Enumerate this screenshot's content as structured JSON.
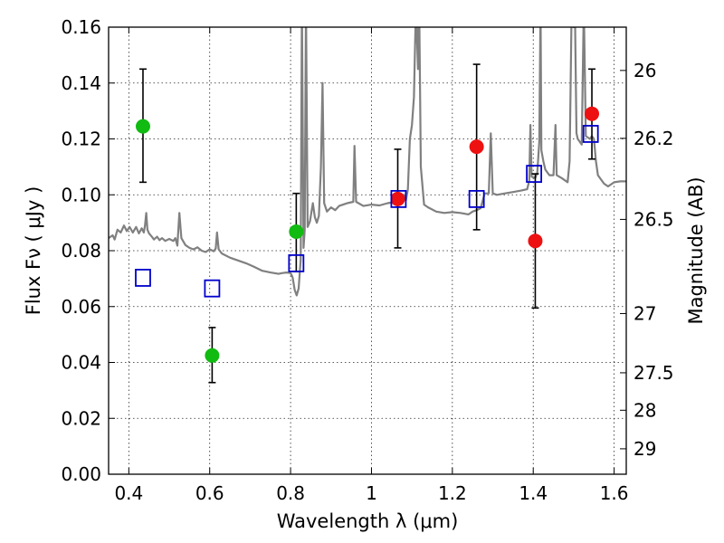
{
  "chart_data": {
    "type": "scatter",
    "title": "",
    "xlabel": "Wavelength  λ (μm)",
    "ylabel": "Flux  Fν  ( μJy )",
    "y2label": "Magnitude (AB)",
    "xlim": [
      0.35,
      1.63
    ],
    "ylim": [
      0.0,
      0.16
    ],
    "x_ticks": [
      0.4,
      0.6,
      0.8,
      1.0,
      1.2,
      1.4,
      1.6
    ],
    "x_tick_labels": [
      "0.4",
      "0.6",
      "0.8",
      "1",
      "1.2",
      "1.4",
      "1.6"
    ],
    "y_ticks": [
      0.0,
      0.02,
      0.04,
      0.06,
      0.08,
      0.1,
      0.12,
      0.14,
      0.16
    ],
    "y_tick_labels": [
      "0.00",
      "0.02",
      "0.04",
      "0.06",
      "0.08",
      "0.10",
      "0.12",
      "0.14",
      "0.16"
    ],
    "y2_ticks": [
      {
        "label": "26",
        "flux": 0.1445
      },
      {
        "label": "26.2",
        "flux": 0.1202
      },
      {
        "label": "26.5",
        "flux": 0.0912
      },
      {
        "label": "27",
        "flux": 0.0575
      },
      {
        "label": "27.5",
        "flux": 0.0363
      },
      {
        "label": "28",
        "flux": 0.0229
      },
      {
        "label": "29",
        "flux": 0.0091
      }
    ],
    "grid": true,
    "colors": {
      "model_line": "#808080",
      "green_points": "#11bb11",
      "red_points": "#ee1111",
      "model_squares": "#0000cc",
      "errorbars": "#000000"
    },
    "series": [
      {
        "marker": "circle",
        "color": "#11bb11",
        "points": [
          {
            "x": 0.435,
            "y": 0.1245,
            "yerr": [
              0.1045,
              0.145
            ]
          },
          {
            "x": 0.606,
            "y": 0.0425,
            "yerr": [
              0.0328,
              0.0525
            ]
          },
          {
            "x": 0.814,
            "y": 0.0868,
            "yerr": [
              0.0725,
              0.1005
            ]
          }
        ]
      },
      {
        "marker": "circle",
        "color": "#ee1111",
        "points": [
          {
            "x": 1.065,
            "y": 0.0985,
            "yerr": [
              0.081,
              0.1163
            ]
          },
          {
            "x": 1.26,
            "y": 0.1172,
            "yerr": [
              0.0875,
              0.1467
            ]
          },
          {
            "x": 1.405,
            "y": 0.0835,
            "yerr": [
              0.0595,
              0.1075
            ]
          },
          {
            "x": 1.545,
            "y": 0.129,
            "yerr": [
              0.1128,
              0.145
            ]
          }
        ]
      },
      {
        "marker": "square",
        "color": "#0000cc",
        "points": [
          {
            "x": 0.435,
            "y": 0.0703
          },
          {
            "x": 0.606,
            "y": 0.0665
          },
          {
            "x": 0.814,
            "y": 0.0755
          },
          {
            "x": 1.067,
            "y": 0.0985
          },
          {
            "x": 1.26,
            "y": 0.0985
          },
          {
            "x": 1.402,
            "y": 0.1075
          },
          {
            "x": 1.542,
            "y": 0.1218
          }
        ]
      }
    ],
    "model_spectrum": {
      "color": "#808080",
      "points": [
        [
          0.35,
          0.0845
        ],
        [
          0.36,
          0.0855
        ],
        [
          0.365,
          0.084
        ],
        [
          0.372,
          0.0875
        ],
        [
          0.38,
          0.0865
        ],
        [
          0.388,
          0.089
        ],
        [
          0.395,
          0.087
        ],
        [
          0.402,
          0.0885
        ],
        [
          0.41,
          0.0865
        ],
        [
          0.418,
          0.0885
        ],
        [
          0.425,
          0.0862
        ],
        [
          0.432,
          0.088
        ],
        [
          0.437,
          0.0865
        ],
        [
          0.44,
          0.089
        ],
        [
          0.443,
          0.0935
        ],
        [
          0.446,
          0.0875
        ],
        [
          0.45,
          0.0862
        ],
        [
          0.457,
          0.085
        ],
        [
          0.462,
          0.084
        ],
        [
          0.47,
          0.085
        ],
        [
          0.476,
          0.0838
        ],
        [
          0.482,
          0.0845
        ],
        [
          0.49,
          0.0835
        ],
        [
          0.5,
          0.0842
        ],
        [
          0.51,
          0.0835
        ],
        [
          0.515,
          0.0845
        ],
        [
          0.52,
          0.0818
        ],
        [
          0.525,
          0.0935
        ],
        [
          0.53,
          0.0845
        ],
        [
          0.54,
          0.082
        ],
        [
          0.55,
          0.081
        ],
        [
          0.56,
          0.0805
        ],
        [
          0.57,
          0.0812
        ],
        [
          0.58,
          0.08
        ],
        [
          0.59,
          0.0795
        ],
        [
          0.6,
          0.0805
        ],
        [
          0.61,
          0.0798
        ],
        [
          0.615,
          0.0808
        ],
        [
          0.618,
          0.0865
        ],
        [
          0.622,
          0.0805
        ],
        [
          0.63,
          0.079
        ],
        [
          0.65,
          0.0775
        ],
        [
          0.67,
          0.0765
        ],
        [
          0.69,
          0.0755
        ],
        [
          0.71,
          0.0742
        ],
        [
          0.73,
          0.0728
        ],
        [
          0.75,
          0.0722
        ],
        [
          0.77,
          0.0717
        ],
        [
          0.78,
          0.072
        ],
        [
          0.79,
          0.0722
        ],
        [
          0.8,
          0.072
        ],
        [
          0.805,
          0.0705
        ],
        [
          0.81,
          0.066
        ],
        [
          0.815,
          0.064
        ],
        [
          0.82,
          0.0665
        ],
        [
          0.825,
          0.077
        ],
        [
          0.828,
          0.168
        ],
        [
          0.832,
          0.081
        ],
        [
          0.835,
          0.0875
        ],
        [
          0.838,
          0.168
        ],
        [
          0.842,
          0.0885
        ],
        [
          0.848,
          0.0905
        ],
        [
          0.855,
          0.097
        ],
        [
          0.86,
          0.092
        ],
        [
          0.865,
          0.09
        ],
        [
          0.87,
          0.0925
        ],
        [
          0.875,
          0.11
        ],
        [
          0.879,
          0.14
        ],
        [
          0.883,
          0.097
        ],
        [
          0.89,
          0.094
        ],
        [
          0.9,
          0.0955
        ],
        [
          0.91,
          0.0945
        ],
        [
          0.92,
          0.096
        ],
        [
          0.94,
          0.097
        ],
        [
          0.955,
          0.0975
        ],
        [
          0.958,
          0.1175
        ],
        [
          0.962,
          0.0975
        ],
        [
          0.98,
          0.096
        ],
        [
          1.0,
          0.0965
        ],
        [
          1.02,
          0.0962
        ],
        [
          1.04,
          0.097
        ],
        [
          1.06,
          0.0975
        ],
        [
          1.075,
          0.0985
        ],
        [
          1.08,
          0.1
        ],
        [
          1.085,
          0.098
        ],
        [
          1.09,
          0.102
        ],
        [
          1.095,
          0.12
        ],
        [
          1.1,
          0.125
        ],
        [
          1.105,
          0.135
        ],
        [
          1.11,
          0.168
        ],
        [
          1.115,
          0.145
        ],
        [
          1.118,
          0.168
        ],
        [
          1.122,
          0.11
        ],
        [
          1.13,
          0.0965
        ],
        [
          1.14,
          0.0955
        ],
        [
          1.16,
          0.094
        ],
        [
          1.18,
          0.0935
        ],
        [
          1.2,
          0.0938
        ],
        [
          1.22,
          0.0935
        ],
        [
          1.24,
          0.093
        ],
        [
          1.25,
          0.094
        ],
        [
          1.26,
          0.0945
        ],
        [
          1.27,
          0.0952
        ],
        [
          1.28,
          0.1005
        ],
        [
          1.29,
          0.1005
        ],
        [
          1.295,
          0.122
        ],
        [
          1.3,
          0.1005
        ],
        [
          1.31,
          0.1
        ],
        [
          1.33,
          0.1005
        ],
        [
          1.35,
          0.101
        ],
        [
          1.37,
          0.1015
        ],
        [
          1.385,
          0.102
        ],
        [
          1.39,
          0.105
        ],
        [
          1.393,
          0.125
        ],
        [
          1.396,
          0.1065
        ],
        [
          1.405,
          0.106
        ],
        [
          1.41,
          0.108
        ],
        [
          1.415,
          0.119
        ],
        [
          1.418,
          0.168
        ],
        [
          1.42,
          0.116
        ],
        [
          1.425,
          0.112
        ],
        [
          1.43,
          0.109
        ],
        [
          1.44,
          0.107
        ],
        [
          1.45,
          0.107
        ],
        [
          1.455,
          0.125
        ],
        [
          1.458,
          0.107
        ],
        [
          1.47,
          0.106
        ],
        [
          1.48,
          0.105
        ],
        [
          1.485,
          0.1045
        ],
        [
          1.49,
          0.112
        ],
        [
          1.495,
          0.168
        ],
        [
          1.5,
          0.16
        ],
        [
          1.503,
          0.168
        ],
        [
          1.507,
          0.122
        ],
        [
          1.51,
          0.12
        ],
        [
          1.52,
          0.118
        ],
        [
          1.525,
          0.168
        ],
        [
          1.53,
          0.121
        ],
        [
          1.54,
          0.12
        ],
        [
          1.545,
          0.121
        ],
        [
          1.55,
          0.12
        ],
        [
          1.555,
          0.112
        ],
        [
          1.56,
          0.107
        ],
        [
          1.575,
          0.104
        ],
        [
          1.585,
          0.103
        ],
        [
          1.6,
          0.1045
        ],
        [
          1.615,
          0.1048
        ],
        [
          1.63,
          0.1048
        ]
      ]
    }
  }
}
